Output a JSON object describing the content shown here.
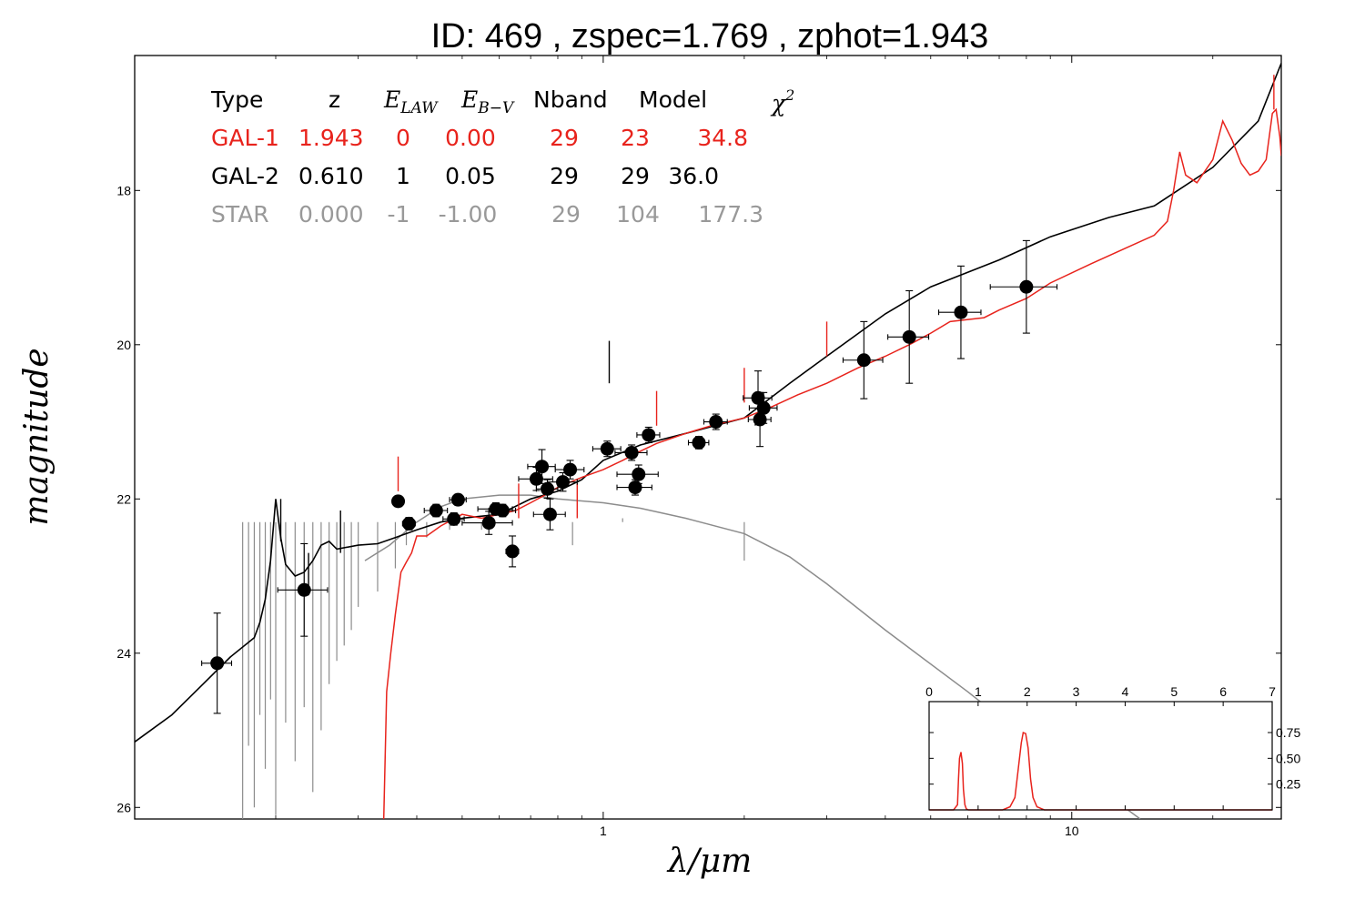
{
  "chart_data": [
    {
      "type": "scatter",
      "title": "ID:  469   , zspec=1.769 , zphot=1.943",
      "xlabel": "λ/μm",
      "ylabel": "magnitude",
      "xscale": "log",
      "xlim": [
        0.1,
        28
      ],
      "ylim": [
        26.15,
        16.25
      ],
      "y_inverted": true,
      "x_ticks": [
        {
          "value": 1,
          "label": "1"
        },
        {
          "value": 10,
          "label": "10"
        }
      ],
      "y_ticks": [
        {
          "value": 18,
          "label": "18"
        },
        {
          "value": 20,
          "label": "20"
        },
        {
          "value": 22,
          "label": "22"
        },
        {
          "value": 24,
          "label": "24"
        },
        {
          "value": 26,
          "label": "26"
        }
      ],
      "grid": false,
      "legend_table": {
        "headers": {
          "type": "Type",
          "z": "z",
          "elaw": "E",
          "elaw_sub": "LAW",
          "ebv": "E",
          "ebv_sub": "B−V",
          "nband": "Nband",
          "model": "Model",
          "chi2": "χ",
          "chi2_sup": "2"
        },
        "rows": [
          {
            "type": "GAL-1",
            "z": "1.943",
            "elaw": "0",
            "ebv": "0.00",
            "nband": "29",
            "model": "23",
            "chi2": "34.8",
            "color": "#e8231c"
          },
          {
            "type": "GAL-2",
            "z": "0.610",
            "elaw": "1",
            "ebv": "0.05",
            "nband": "29",
            "model": "29",
            "chi2": "36.0",
            "color": "#000000"
          },
          {
            "type": "STAR",
            "z": "0.000",
            "elaw": "-1",
            "ebv": "-1.00",
            "nband": "29",
            "model": "104",
            "chi2": "177.3",
            "color": "#999999"
          }
        ]
      },
      "colors": {
        "gal1": "#e8231c",
        "gal2": "#000000",
        "star": "#8c8c8c",
        "points": "#000000"
      },
      "photometry": [
        {
          "x": 0.15,
          "y": 24.13,
          "xerr": 0.011,
          "yerr": 0.65
        },
        {
          "x": 0.23,
          "y": 23.18,
          "xerr": 0.028,
          "yerr": 0.6
        },
        {
          "x": 0.365,
          "y": 22.03,
          "xerr": 0.009,
          "yerr": 0.07
        },
        {
          "x": 0.385,
          "y": 22.32,
          "xerr": 0.012,
          "yerr": 0.08
        },
        {
          "x": 0.44,
          "y": 22.15,
          "xerr": 0.025,
          "yerr": 0.08
        },
        {
          "x": 0.48,
          "y": 22.26,
          "xerr": 0.025,
          "yerr": 0.08
        },
        {
          "x": 0.49,
          "y": 22.01,
          "xerr": 0.02,
          "yerr": 0.07
        },
        {
          "x": 0.59,
          "y": 22.13,
          "xerr": 0.05,
          "yerr": 0.08
        },
        {
          "x": 0.61,
          "y": 22.15,
          "xerr": 0.04,
          "yerr": 0.08
        },
        {
          "x": 0.57,
          "y": 22.31,
          "xerr": 0.07,
          "yerr": 0.15
        },
        {
          "x": 0.64,
          "y": 22.68,
          "xerr": 0.02,
          "yerr": 0.2
        },
        {
          "x": 0.72,
          "y": 21.74,
          "xerr": 0.06,
          "yerr": 0.15
        },
        {
          "x": 0.74,
          "y": 21.58,
          "xerr": 0.05,
          "yerr": 0.22
        },
        {
          "x": 0.76,
          "y": 21.87,
          "xerr": 0.04,
          "yerr": 0.12
        },
        {
          "x": 0.77,
          "y": 22.2,
          "xerr": 0.06,
          "yerr": 0.2
        },
        {
          "x": 0.82,
          "y": 21.78,
          "xerr": 0.06,
          "yerr": 0.12
        },
        {
          "x": 0.85,
          "y": 21.62,
          "xerr": 0.06,
          "yerr": 0.12
        },
        {
          "x": 1.02,
          "y": 21.35,
          "xerr": 0.07,
          "yerr": 0.1
        },
        {
          "x": 1.15,
          "y": 21.4,
          "xerr": 0.09,
          "yerr": 0.1
        },
        {
          "x": 1.17,
          "y": 21.85,
          "xerr": 0.1,
          "yerr": 0.1
        },
        {
          "x": 1.19,
          "y": 21.68,
          "xerr": 0.12,
          "yerr": 0.12
        },
        {
          "x": 1.25,
          "y": 21.17,
          "xerr": 0.07,
          "yerr": 0.1
        },
        {
          "x": 1.6,
          "y": 21.27,
          "xerr": 0.08,
          "yerr": 0.08
        },
        {
          "x": 1.74,
          "y": 21.0,
          "xerr": 0.1,
          "yerr": 0.1
        },
        {
          "x": 2.14,
          "y": 20.69,
          "xerr": 0.15,
          "yerr": 0.35
        },
        {
          "x": 2.16,
          "y": 20.97,
          "xerr": 0.12,
          "yerr": 0.35
        },
        {
          "x": 2.2,
          "y": 20.82,
          "xerr": 0.15,
          "yerr": 0.2
        },
        {
          "x": 3.6,
          "y": 20.2,
          "xerr": 0.35,
          "yerr": 0.5
        },
        {
          "x": 4.5,
          "y": 19.9,
          "xerr": 0.45,
          "yerr": 0.6
        },
        {
          "x": 5.8,
          "y": 19.58,
          "xerr": 0.6,
          "yerr": 0.6
        },
        {
          "x": 8.0,
          "y": 19.25,
          "xerr": 1.3,
          "yerr": 0.6
        }
      ],
      "gal1_curve": [
        [
          0.34,
          26.2
        ],
        [
          0.345,
          24.5
        ],
        [
          0.352,
          24.0
        ],
        [
          0.36,
          23.5
        ],
        [
          0.37,
          22.95
        ],
        [
          0.38,
          22.82
        ],
        [
          0.39,
          22.7
        ],
        [
          0.4,
          22.48
        ],
        [
          0.42,
          22.48
        ],
        [
          0.45,
          22.35
        ],
        [
          0.5,
          22.2
        ],
        [
          0.55,
          22.25
        ],
        [
          0.6,
          22.2
        ],
        [
          0.65,
          22.15
        ],
        [
          0.7,
          22.05
        ],
        [
          0.75,
          21.95
        ],
        [
          0.8,
          21.85
        ],
        [
          0.9,
          21.72
        ],
        [
          1.0,
          21.62
        ],
        [
          1.1,
          21.5
        ],
        [
          1.2,
          21.38
        ],
        [
          1.3,
          21.28
        ],
        [
          1.5,
          21.15
        ],
        [
          1.7,
          21.05
        ],
        [
          2.0,
          20.95
        ],
        [
          2.3,
          20.8
        ],
        [
          2.6,
          20.65
        ],
        [
          3.0,
          20.5
        ],
        [
          3.5,
          20.3
        ],
        [
          4.0,
          20.15
        ],
        [
          4.5,
          20.0
        ],
        [
          5.0,
          19.85
        ],
        [
          5.5,
          19.7
        ],
        [
          6.5,
          19.65
        ],
        [
          7.0,
          19.55
        ],
        [
          8.0,
          19.4
        ],
        [
          9.0,
          19.2
        ],
        [
          11.0,
          18.95
        ],
        [
          13.0,
          18.75
        ],
        [
          15.0,
          18.58
        ],
        [
          16.0,
          18.4
        ],
        [
          16.5,
          18.0
        ],
        [
          17.0,
          17.5
        ],
        [
          17.5,
          17.8
        ],
        [
          18.5,
          17.9
        ],
        [
          20.0,
          17.6
        ],
        [
          21.0,
          17.1
        ],
        [
          22.0,
          17.35
        ],
        [
          23.0,
          17.65
        ],
        [
          24.0,
          17.8
        ],
        [
          25.0,
          17.75
        ],
        [
          26.0,
          17.6
        ],
        [
          26.8,
          17.0
        ],
        [
          27.3,
          16.95
        ],
        [
          27.8,
          17.3
        ],
        [
          28.0,
          17.55
        ]
      ],
      "gal1_lines": [
        [
          0.365,
          21.45
        ],
        [
          0.66,
          21.8
        ],
        [
          0.88,
          21.8
        ],
        [
          1.3,
          20.6
        ],
        [
          2.0,
          20.3
        ],
        [
          3.0,
          19.7
        ],
        [
          27.0,
          16.5
        ]
      ],
      "gal2_curve": [
        [
          0.1,
          25.15
        ],
        [
          0.12,
          24.8
        ],
        [
          0.14,
          24.4
        ],
        [
          0.16,
          24.05
        ],
        [
          0.18,
          23.8
        ],
        [
          0.185,
          23.6
        ],
        [
          0.19,
          23.3
        ],
        [
          0.195,
          22.8
        ],
        [
          0.2,
          22.0
        ],
        [
          0.205,
          22.5
        ],
        [
          0.21,
          22.85
        ],
        [
          0.22,
          23.0
        ],
        [
          0.23,
          22.95
        ],
        [
          0.24,
          22.8
        ],
        [
          0.25,
          22.6
        ],
        [
          0.26,
          22.55
        ],
        [
          0.27,
          22.65
        ],
        [
          0.3,
          22.6
        ],
        [
          0.33,
          22.58
        ],
        [
          0.36,
          22.5
        ],
        [
          0.4,
          22.4
        ],
        [
          0.45,
          22.3
        ],
        [
          0.5,
          22.25
        ],
        [
          0.6,
          22.2
        ],
        [
          0.7,
          22.0
        ],
        [
          0.8,
          21.9
        ],
        [
          0.9,
          21.75
        ],
        [
          1.0,
          21.5
        ],
        [
          1.2,
          21.3
        ],
        [
          1.5,
          21.15
        ],
        [
          2.0,
          20.95
        ],
        [
          2.5,
          20.5
        ],
        [
          3.0,
          20.15
        ],
        [
          4.0,
          19.6
        ],
        [
          5.0,
          19.25
        ],
        [
          7.0,
          18.9
        ],
        [
          9.0,
          18.6
        ],
        [
          12.0,
          18.35
        ],
        [
          15.0,
          18.2
        ],
        [
          20.0,
          17.7
        ],
        [
          25.0,
          17.1
        ],
        [
          28.0,
          16.35
        ]
      ],
      "gal2_lines": [
        [
          0.205,
          22.0
        ],
        [
          0.235,
          22.7
        ],
        [
          0.275,
          22.15
        ],
        [
          1.03,
          19.95
        ]
      ],
      "star_curve": [
        [
          0.31,
          22.8
        ],
        [
          0.35,
          22.6
        ],
        [
          0.4,
          22.3
        ],
        [
          0.45,
          22.1
        ],
        [
          0.5,
          22.0
        ],
        [
          0.6,
          21.95
        ],
        [
          0.7,
          21.95
        ],
        [
          0.8,
          22.0
        ],
        [
          1.0,
          22.05
        ],
        [
          1.2,
          22.12
        ],
        [
          1.5,
          22.25
        ],
        [
          2.0,
          22.45
        ],
        [
          2.5,
          22.75
        ],
        [
          3.0,
          23.1
        ],
        [
          4.0,
          23.7
        ],
        [
          6.0,
          24.5
        ],
        [
          8.0,
          25.1
        ],
        [
          10.0,
          25.5
        ],
        [
          12.0,
          25.85
        ],
        [
          14.0,
          26.15
        ]
      ],
      "star_spikes": [
        [
          0.17,
          26.2
        ],
        [
          0.175,
          25.2
        ],
        [
          0.18,
          26.0
        ],
        [
          0.185,
          24.8
        ],
        [
          0.19,
          25.5
        ],
        [
          0.195,
          24.6
        ],
        [
          0.2,
          26.1
        ],
        [
          0.21,
          24.9
        ],
        [
          0.22,
          25.4
        ],
        [
          0.23,
          24.7
        ],
        [
          0.24,
          25.8
        ],
        [
          0.25,
          25.0
        ],
        [
          0.26,
          24.4
        ],
        [
          0.27,
          24.1
        ],
        [
          0.28,
          23.9
        ],
        [
          0.29,
          23.7
        ],
        [
          0.3,
          23.4
        ],
        [
          0.33,
          23.2
        ],
        [
          0.36,
          22.9
        ],
        [
          0.38,
          22.6
        ],
        [
          0.42,
          22.5
        ],
        [
          0.47,
          22.4
        ],
        [
          0.55,
          22.4
        ],
        [
          0.66,
          22.3
        ],
        [
          0.86,
          22.6
        ],
        [
          1.1,
          22.25
        ],
        [
          1.2,
          22.3
        ],
        [
          2.0,
          22.8
        ]
      ]
    },
    {
      "type": "line",
      "title": "",
      "xlabel": "",
      "ylabel": "",
      "xlim": [
        0,
        7
      ],
      "ylim": [
        0,
        1.05
      ],
      "x_ticks": [
        {
          "value": 0,
          "label": "0"
        },
        {
          "value": 1,
          "label": "1"
        },
        {
          "value": 2,
          "label": "2"
        },
        {
          "value": 3,
          "label": "3"
        },
        {
          "value": 4,
          "label": "4"
        },
        {
          "value": 5,
          "label": "5"
        },
        {
          "value": 6,
          "label": "6"
        },
        {
          "value": 7,
          "label": "7"
        }
      ],
      "y_ticks": [
        {
          "value": 0.25,
          "label": "0.25"
        },
        {
          "value": 0.5,
          "label": "0.50"
        },
        {
          "value": 0.75,
          "label": "0.75"
        }
      ],
      "color": "#e8231c",
      "x": [
        0,
        0.5,
        0.58,
        0.6,
        0.62,
        0.65,
        0.68,
        0.7,
        0.73,
        0.76,
        0.8,
        1.5,
        1.65,
        1.75,
        1.82,
        1.88,
        1.92,
        1.97,
        2.02,
        2.07,
        2.12,
        2.2,
        2.35,
        7
      ],
      "y": [
        0,
        0,
        0.05,
        0.3,
        0.5,
        0.56,
        0.45,
        0.2,
        0.05,
        0.01,
        0,
        0,
        0.03,
        0.12,
        0.4,
        0.65,
        0.75,
        0.74,
        0.6,
        0.3,
        0.12,
        0.03,
        0,
        0
      ]
    }
  ]
}
